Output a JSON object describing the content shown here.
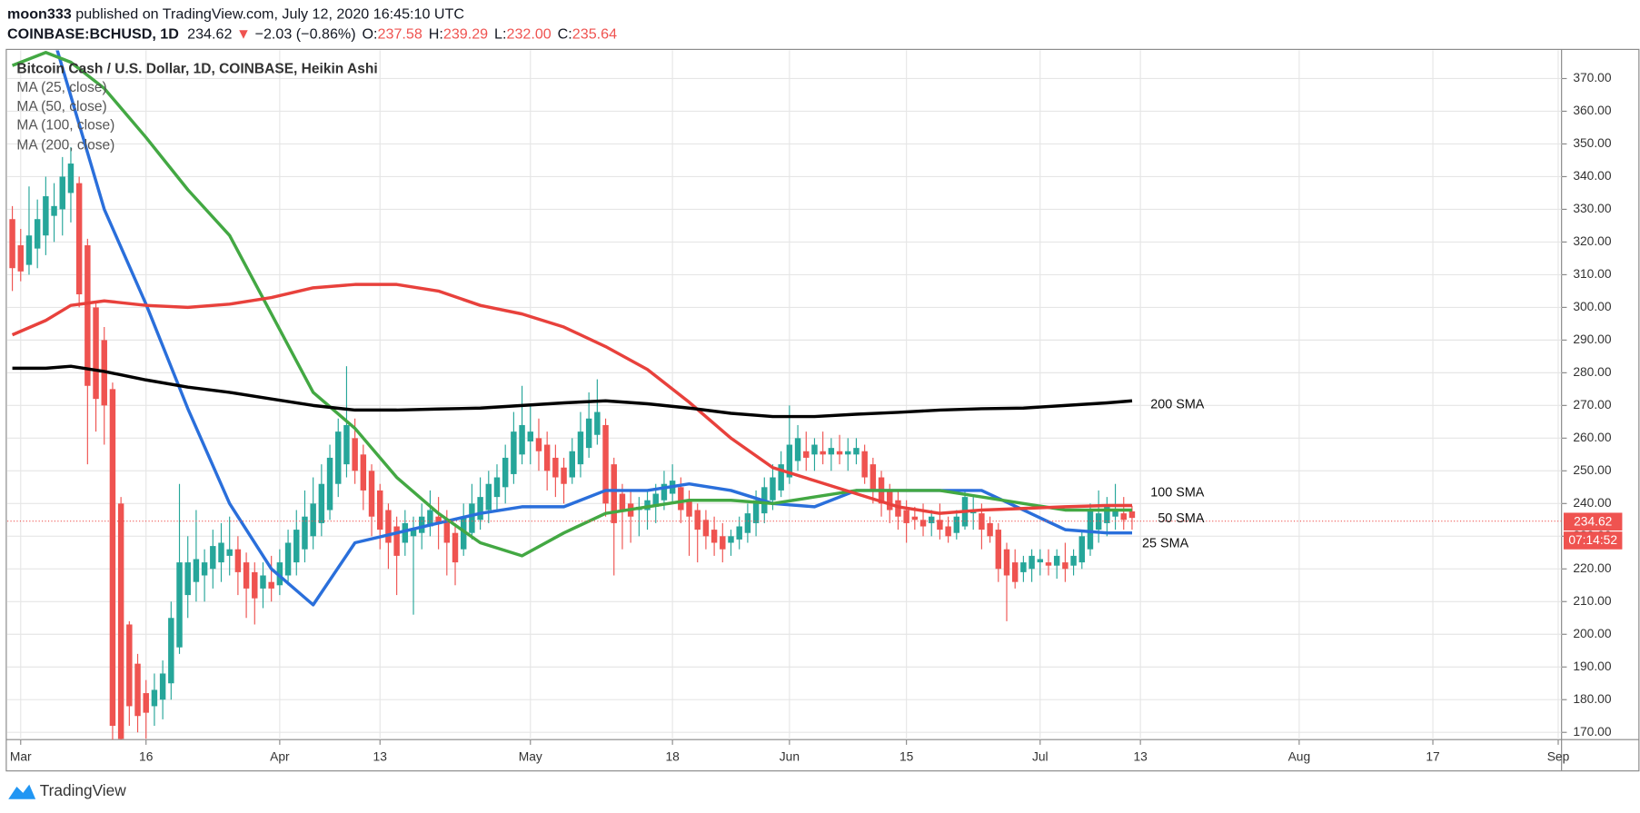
{
  "header": {
    "author": "moon333",
    "published": " published on TradingView.com, July 12, 2020 16:45:10 UTC",
    "symbol": "COINBASE:BCHUSD, 1D",
    "price": "234.62",
    "arrow": "▼",
    "change": "−2.03 (−0.86%)",
    "ohlc": [
      {
        "key": "O:",
        "value": "237.58"
      },
      {
        "key": "H:",
        "value": "239.29"
      },
      {
        "key": "L:",
        "value": "232.00"
      },
      {
        "key": "C:",
        "value": "235.64"
      }
    ]
  },
  "footer": {
    "brand": "TradingView"
  },
  "chart_data": {
    "type": "candlestick",
    "title": "Bitcoin Cash / U.S. Dollar, 1D, COINBASE, Heikin Ashi",
    "up_color": "#26a69a",
    "down_color": "#ef5350",
    "grid": true,
    "xlim": [
      -1.6,
      184.4
    ],
    "ylim": [
      167.8,
      378.6
    ],
    "xticks": [
      {
        "value": 0,
        "label": "Mar"
      },
      {
        "value": 15,
        "label": "16"
      },
      {
        "value": 31,
        "label": "Apr"
      },
      {
        "value": 43,
        "label": "13"
      },
      {
        "value": 61,
        "label": "May"
      },
      {
        "value": 78,
        "label": "18"
      },
      {
        "value": 92,
        "label": "Jun"
      },
      {
        "value": 106,
        "label": "15"
      },
      {
        "value": 122,
        "label": "Jul"
      },
      {
        "value": 134,
        "label": "13"
      },
      {
        "value": 153,
        "label": "Aug"
      },
      {
        "value": 169,
        "label": "17"
      },
      {
        "value": 184,
        "label": "Sep"
      }
    ],
    "yticks": [
      {
        "value": 170,
        "label": "170.00"
      },
      {
        "value": 180,
        "label": "180.00"
      },
      {
        "value": 190,
        "label": "190.00"
      },
      {
        "value": 200,
        "label": "200.00"
      },
      {
        "value": 210,
        "label": "210.00"
      },
      {
        "value": 220,
        "label": "220.00"
      },
      {
        "value": 230,
        "label": "230.00"
      },
      {
        "value": 240,
        "label": "240.00"
      },
      {
        "value": 250,
        "label": "250.00"
      },
      {
        "value": 260,
        "label": "260.00"
      },
      {
        "value": 270,
        "label": "270.00"
      },
      {
        "value": 280,
        "label": "280.00"
      },
      {
        "value": 290,
        "label": "290.00"
      },
      {
        "value": 300,
        "label": "300.00"
      },
      {
        "value": 310,
        "label": "310.00"
      },
      {
        "value": 320,
        "label": "320.00"
      },
      {
        "value": 330,
        "label": "330.00"
      },
      {
        "value": 340,
        "label": "340.00"
      },
      {
        "value": 350,
        "label": "350.00"
      },
      {
        "value": 360,
        "label": "360.00"
      },
      {
        "value": 370,
        "label": "370.00"
      }
    ],
    "x": [
      -1,
      0,
      1,
      2,
      3,
      4,
      5,
      6,
      7,
      8,
      9,
      10,
      11,
      12,
      13,
      14,
      15,
      16,
      17,
      18,
      19,
      20,
      21,
      22,
      23,
      24,
      25,
      26,
      27,
      28,
      29,
      30,
      31,
      32,
      33,
      34,
      35,
      36,
      37,
      38,
      39,
      40,
      41,
      42,
      43,
      44,
      45,
      46,
      47,
      48,
      49,
      50,
      51,
      52,
      53,
      54,
      55,
      56,
      57,
      58,
      59,
      60,
      61,
      62,
      63,
      64,
      65,
      66,
      67,
      68,
      69,
      70,
      71,
      72,
      73,
      74,
      75,
      76,
      77,
      78,
      79,
      80,
      81,
      82,
      83,
      84,
      85,
      86,
      87,
      88,
      89,
      90,
      91,
      92,
      93,
      94,
      95,
      96,
      97,
      98,
      99,
      100,
      101,
      102,
      103,
      104,
      105,
      106,
      107,
      108,
      109,
      110,
      111,
      112,
      113,
      114,
      115,
      116,
      117,
      118,
      119,
      120,
      121,
      122,
      123,
      124,
      125,
      126,
      127,
      128,
      129,
      130,
      131,
      132,
      133
    ],
    "ohlc": [
      [
        327,
        331,
        305,
        312
      ],
      [
        319,
        324,
        308,
        311
      ],
      [
        313,
        337,
        310,
        322
      ],
      [
        318,
        333,
        312,
        327
      ],
      [
        322,
        340,
        316,
        334
      ],
      [
        328,
        338,
        320,
        331
      ],
      [
        330,
        346,
        322,
        340
      ],
      [
        335,
        349,
        326,
        344
      ],
      [
        338,
        340,
        300,
        304
      ],
      [
        319,
        321,
        252,
        276
      ],
      [
        300,
        302,
        262,
        272
      ],
      [
        290,
        294,
        258,
        270
      ],
      [
        275,
        277,
        165,
        172
      ],
      [
        240,
        242,
        160,
        168
      ],
      [
        203,
        204,
        172,
        178
      ],
      [
        191,
        194,
        170,
        175
      ],
      [
        182,
        186,
        168,
        176
      ],
      [
        178,
        188,
        172,
        183
      ],
      [
        180,
        192,
        174,
        188
      ],
      [
        185,
        210,
        180,
        205
      ],
      [
        196,
        246,
        194,
        222
      ],
      [
        212,
        230,
        205,
        222
      ],
      [
        216,
        238,
        210,
        223
      ],
      [
        218,
        226,
        210,
        222
      ],
      [
        220,
        232,
        214,
        227
      ],
      [
        222,
        234,
        216,
        228
      ],
      [
        224,
        236,
        218,
        226
      ],
      [
        226,
        230,
        212,
        219
      ],
      [
        222,
        225,
        205,
        214
      ],
      [
        219,
        222,
        203,
        211
      ],
      [
        214,
        222,
        208,
        218
      ],
      [
        216,
        224,
        210,
        214
      ],
      [
        215,
        226,
        212,
        222
      ],
      [
        218,
        232,
        215,
        228
      ],
      [
        222,
        238,
        218,
        232
      ],
      [
        226,
        244,
        222,
        236
      ],
      [
        230,
        248,
        226,
        240
      ],
      [
        234,
        252,
        230,
        246
      ],
      [
        238,
        258,
        235,
        254
      ],
      [
        246,
        266,
        242,
        262
      ],
      [
        252,
        282,
        248,
        264
      ],
      [
        260,
        266,
        246,
        250
      ],
      [
        255,
        258,
        238,
        244
      ],
      [
        250,
        252,
        230,
        236
      ],
      [
        244,
        246,
        226,
        232
      ],
      [
        238,
        240,
        220,
        228
      ],
      [
        233,
        236,
        212,
        224
      ],
      [
        228,
        238,
        224,
        234
      ],
      [
        230,
        236,
        206,
        232
      ],
      [
        231,
        240,
        226,
        236
      ],
      [
        233,
        244,
        230,
        238
      ],
      [
        236,
        242,
        226,
        234
      ],
      [
        235,
        238,
        218,
        228
      ],
      [
        231,
        234,
        215,
        222
      ],
      [
        226,
        240,
        224,
        236
      ],
      [
        231,
        246,
        229,
        240
      ],
      [
        235,
        248,
        232,
        242
      ],
      [
        238,
        250,
        234,
        246
      ],
      [
        242,
        252,
        238,
        248
      ],
      [
        245,
        258,
        240,
        254
      ],
      [
        249,
        268,
        246,
        262
      ],
      [
        255,
        276,
        252,
        264
      ],
      [
        259,
        270,
        252,
        262
      ],
      [
        260,
        266,
        250,
        256
      ],
      [
        258,
        262,
        244,
        250
      ],
      [
        254,
        258,
        242,
        248
      ],
      [
        251,
        254,
        240,
        246
      ],
      [
        248,
        260,
        246,
        256
      ],
      [
        252,
        268,
        248,
        262
      ],
      [
        257,
        274,
        254,
        266
      ],
      [
        261,
        278,
        258,
        268
      ],
      [
        264,
        266,
        236,
        240
      ],
      [
        252,
        254,
        218,
        234
      ],
      [
        243,
        246,
        226,
        238
      ],
      [
        240,
        244,
        228,
        236
      ],
      [
        238,
        242,
        230,
        239
      ],
      [
        238,
        244,
        232,
        241
      ],
      [
        239,
        246,
        234,
        243
      ],
      [
        241,
        250,
        238,
        246
      ],
      [
        243,
        252,
        240,
        247
      ],
      [
        245,
        248,
        234,
        238
      ],
      [
        241,
        244,
        224,
        236
      ],
      [
        238,
        240,
        222,
        232
      ],
      [
        235,
        238,
        226,
        230
      ],
      [
        232,
        236,
        224,
        228
      ],
      [
        230,
        234,
        222,
        226
      ],
      [
        228,
        232,
        224,
        230
      ],
      [
        229,
        236,
        226,
        233
      ],
      [
        231,
        240,
        228,
        237
      ],
      [
        234,
        244,
        230,
        241
      ],
      [
        237,
        248,
        234,
        245
      ],
      [
        241,
        252,
        238,
        248
      ],
      [
        244,
        256,
        242,
        252
      ],
      [
        248,
        270,
        246,
        258
      ],
      [
        253,
        264,
        250,
        260
      ],
      [
        256,
        262,
        250,
        254
      ],
      [
        255,
        260,
        250,
        258
      ],
      [
        256,
        262,
        252,
        255
      ],
      [
        255,
        260,
        250,
        257
      ],
      [
        256,
        261,
        252,
        255
      ],
      [
        255,
        260,
        250,
        256
      ],
      [
        255,
        260,
        252,
        257
      ],
      [
        256,
        258,
        246,
        248
      ],
      [
        252,
        254,
        240,
        244
      ],
      [
        248,
        250,
        236,
        240
      ],
      [
        244,
        246,
        234,
        238
      ],
      [
        241,
        244,
        232,
        236
      ],
      [
        238,
        241,
        228,
        234
      ],
      [
        236,
        239,
        232,
        235
      ],
      [
        235,
        240,
        230,
        233
      ],
      [
        234,
        238,
        230,
        236
      ],
      [
        235,
        240,
        229,
        232
      ],
      [
        233,
        236,
        228,
        230
      ],
      [
        231,
        238,
        229,
        236
      ],
      [
        233,
        244,
        232,
        242
      ],
      [
        237,
        242,
        232,
        238
      ],
      [
        237,
        240,
        226,
        232
      ],
      [
        234,
        236,
        228,
        230
      ],
      [
        232,
        234,
        216,
        220
      ],
      [
        226,
        228,
        204,
        218
      ],
      [
        222,
        226,
        214,
        216
      ],
      [
        219,
        224,
        216,
        222
      ],
      [
        220,
        226,
        216,
        224
      ],
      [
        222,
        226,
        218,
        223
      ],
      [
        222,
        226,
        218,
        221
      ],
      [
        221,
        226,
        217,
        224
      ],
      [
        222,
        228,
        216,
        220
      ],
      [
        221,
        226,
        218,
        224
      ],
      [
        222,
        232,
        220,
        230
      ],
      [
        226,
        240,
        224,
        238
      ],
      [
        232,
        244,
        228,
        237
      ],
      [
        234,
        242,
        230,
        239
      ],
      [
        236,
        246,
        232,
        238
      ],
      [
        237,
        242,
        232,
        235
      ],
      [
        237.6,
        239.3,
        232,
        235.6
      ]
    ],
    "series": [
      {
        "name": "MA (25, close)",
        "color": "#2a6fdb",
        "x": [
          4,
          10,
          15,
          20,
          25,
          30,
          35,
          40,
          45,
          50,
          55,
          60,
          65,
          70,
          75,
          80,
          85,
          90,
          95,
          100,
          105,
          110,
          115,
          120,
          125,
          130,
          133
        ],
        "values": [
          382,
          330,
          301,
          269,
          240,
          220,
          209,
          228,
          231,
          234,
          237,
          239,
          239,
          244,
          244,
          246,
          244,
          240,
          239,
          244,
          244,
          244,
          244,
          238,
          232,
          231,
          231
        ]
      },
      {
        "name": "MA (50, close)",
        "color": "#43a843",
        "x": [
          -1,
          3,
          6,
          10,
          15,
          20,
          25,
          30,
          35,
          40,
          45,
          50,
          55,
          60,
          65,
          70,
          75,
          80,
          85,
          90,
          95,
          100,
          105,
          110,
          115,
          120,
          125,
          130,
          133
        ],
        "values": [
          374,
          378,
          375,
          367,
          352,
          336,
          322,
          298,
          274,
          263,
          248,
          237,
          228,
          224,
          231,
          237,
          239,
          241,
          241,
          240,
          242,
          244,
          244,
          244,
          242,
          240,
          238,
          238,
          238
        ]
      },
      {
        "name": "MA (100, close)",
        "color": "#e8413c",
        "x": [
          -1,
          3,
          6,
          10,
          15,
          20,
          25,
          30,
          35,
          40,
          45,
          50,
          55,
          60,
          65,
          70,
          75,
          80,
          85,
          90,
          95,
          100,
          105,
          110,
          115,
          120,
          125,
          130,
          133
        ],
        "values": [
          291.6,
          296,
          300.6,
          302,
          300.6,
          300,
          301,
          303,
          306,
          307,
          307,
          305,
          300.6,
          298,
          294,
          288,
          281,
          271,
          260,
          251,
          247,
          243,
          239,
          237,
          238,
          238.5,
          239,
          239.4,
          239.4
        ]
      },
      {
        "name": "MA (200, close)",
        "color": "#000000",
        "x": [
          -1,
          3,
          6,
          10,
          15,
          20,
          25,
          30,
          35,
          40,
          45,
          50,
          55,
          60,
          65,
          70,
          75,
          80,
          85,
          90,
          95,
          100,
          105,
          110,
          115,
          120,
          125,
          130,
          133
        ],
        "values": [
          281.4,
          281.4,
          282,
          280.4,
          277.8,
          275.6,
          274,
          272,
          270,
          268.6,
          268.6,
          268.9,
          269.2,
          270,
          270.8,
          271.4,
          270.5,
          269.2,
          267.6,
          266.6,
          266.6,
          267.3,
          267.9,
          268.6,
          269,
          269.2,
          270,
          270.8,
          271.4
        ]
      }
    ],
    "annotations": [
      "200 SMA",
      "100 SMA",
      "50 SMA",
      "25 SMA"
    ],
    "last_price": 234.62,
    "countdown": "07:14:52"
  }
}
